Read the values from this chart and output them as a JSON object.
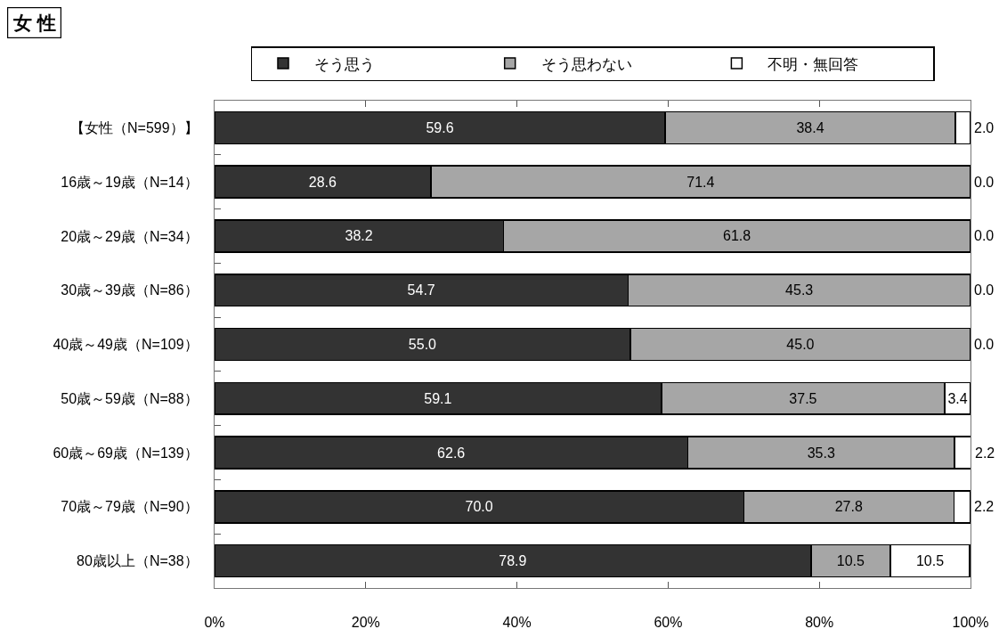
{
  "chart_data": {
    "type": "bar",
    "orientation": "horizontal",
    "stacked": true,
    "title": "女 性",
    "categories": [
      "【女性（N=599）】",
      "16歳～19歳（N=14）",
      "20歳～29歳（N=34）",
      "30歳～39歳（N=86）",
      "40歳～49歳（N=109）",
      "50歳～59歳（N=88）",
      "60歳～69歳（N=139）",
      "70歳～79歳（N=90）",
      "80歳以上（N=38）"
    ],
    "series": [
      {
        "name": "そう思う",
        "color": "#333333",
        "values": [
          59.6,
          28.6,
          38.2,
          54.7,
          55.0,
          59.1,
          62.6,
          70.0,
          78.9
        ],
        "value_labels": [
          "59.6",
          "28.6",
          "38.2",
          "54.7",
          "55.0",
          "59.1",
          "62.6",
          "70.0",
          "78.9"
        ]
      },
      {
        "name": "そう思わない",
        "color": "#a6a6a6",
        "values": [
          38.4,
          71.4,
          61.8,
          45.3,
          45.0,
          37.5,
          35.3,
          27.8,
          10.5
        ],
        "value_labels": [
          "38.4",
          "71.4",
          "61.8",
          "45.3",
          "45.0",
          "37.5",
          "35.3",
          "27.8",
          "10.5"
        ]
      },
      {
        "name": "不明・無回答",
        "color": "#ffffff",
        "values": [
          2.0,
          0.0,
          0.0,
          0.0,
          0.0,
          3.4,
          2.2,
          2.2,
          10.5
        ],
        "value_labels": [
          "2.0",
          "0.0",
          "0.0",
          "0.0",
          "0.0",
          "3.4",
          "2.2",
          "2.2",
          "10.5"
        ]
      }
    ],
    "xlim": [
      0,
      100
    ],
    "xticks": [
      {
        "value": 0,
        "label": "0%"
      },
      {
        "value": 20,
        "label": "20%"
      },
      {
        "value": 40,
        "label": "40%"
      },
      {
        "value": 60,
        "label": "60%"
      },
      {
        "value": 80,
        "label": "80%"
      },
      {
        "value": 100,
        "label": "100%"
      }
    ],
    "grid": false,
    "legend": "top"
  }
}
